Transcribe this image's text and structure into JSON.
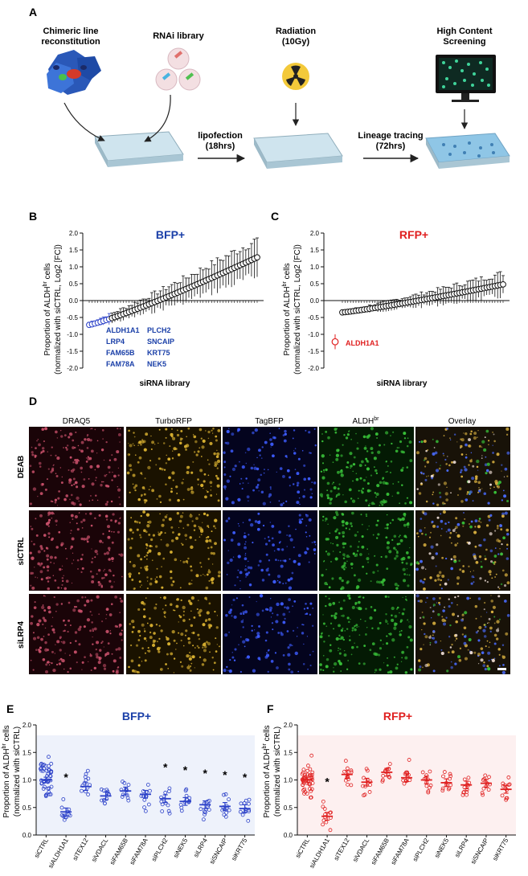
{
  "panels": {
    "A": "A",
    "B": "B",
    "C": "C",
    "D": "D",
    "E": "E",
    "F": "F"
  },
  "workflow": {
    "step1_line1": "Chimeric line",
    "step1_line2": "reconstitution",
    "step2": "RNAi library",
    "step3_line1": "Radiation",
    "step3_line2": "(10Gy)",
    "step4_line1": "High Content",
    "step4_line2": "Screening",
    "arrow1_line1": "lipofection",
    "arrow1_line2": "(18hrs)",
    "arrow2_line1": "Lineage tracing",
    "arrow2_line2": "(72hrs)"
  },
  "microscopy": {
    "columns": [
      "DRAQ5",
      "TurboRFP",
      "TagBFP",
      "ALDH",
      "Overlay"
    ],
    "aldh_superscript": "br",
    "rows": [
      "DEAB",
      "siCTRL",
      "siLRP4"
    ],
    "colors": [
      "#c8506a",
      "#d8b030",
      "#3d5cff",
      "#38c038",
      "#c8a860"
    ],
    "bg_colors": [
      "#1a0408",
      "#1a1200",
      "#04041e",
      "#041a04",
      "#181208"
    ]
  },
  "chart_data": [
    {
      "panel": "B",
      "type": "scatter",
      "title": "BFP+",
      "title_color": "#1a3fa8",
      "ylabel_line1": "Proportion of ALDH",
      "ylabel_sup": "br",
      "ylabel_line1_end": " cells",
      "ylabel_line2": "(normalized with siCTRL, Log2 [FC])",
      "xlabel": "siRNA library",
      "ylim": [
        -2.0,
        2.0
      ],
      "yticks": [
        "2.0",
        "1.5",
        "1.0",
        "0.5",
        "0.0",
        "-0.5",
        "-1.0",
        "-1.5",
        "-2.0"
      ],
      "n_points": 60,
      "start": -0.72,
      "end": 1.28,
      "highlight_n": 8,
      "highlight_color": "#2b40c8",
      "highlight_labels_col1": [
        "ALDH1A1",
        "LRP4",
        "FAM65B",
        "FAM78A"
      ],
      "highlight_labels_col2": [
        "PLCH2",
        "SNCAIP",
        "KRT75",
        "NEK5"
      ]
    },
    {
      "panel": "C",
      "type": "scatter",
      "title": "RFP+",
      "title_color": "#e02020",
      "ylabel_line1": "Proportion of ALDH",
      "ylabel_sup": "br",
      "ylabel_line1_end": " cells",
      "ylabel_line2": "(normalized with siCTRL, Log2 [FC])",
      "xlabel": "siRNA library",
      "ylim": [
        -2.0,
        2.0
      ],
      "yticks": [
        "2.0",
        "1.5",
        "1.0",
        "0.5",
        "0.0",
        "-0.5",
        "-1.0",
        "-1.5",
        "-2.0"
      ],
      "n_points": 60,
      "start": -0.35,
      "end": 0.48,
      "outlier": {
        "label": "ALDH1A1",
        "value": -1.22,
        "color": "#e02020"
      }
    },
    {
      "panel": "E",
      "type": "scatter",
      "title": "BFP+",
      "title_color": "#1a3fa8",
      "color": "#2b40c8",
      "ylabel_line1": "Proportion of ALDH",
      "ylabel_sup": "br",
      "ylabel_line1_end": " cells",
      "ylabel_line2": "(normalized with siCTRL)",
      "ylim": [
        0.0,
        2.0
      ],
      "yticks": [
        "2.0",
        "1.5",
        "1.0",
        "0.5",
        "0.0"
      ],
      "categories": [
        "siCTRL",
        "siALDH1A1",
        "siTEX12",
        "siVDACL",
        "siFAM65B",
        "siFAM78A",
        "siPLCH2",
        "siNEK5",
        "siLRP4",
        "siSNCAIP",
        "siKRT75"
      ],
      "values": [
        1.0,
        0.42,
        0.88,
        0.71,
        0.8,
        0.74,
        0.66,
        0.61,
        0.55,
        0.52,
        0.48
      ],
      "significant": [
        "",
        "*",
        "",
        "",
        "",
        "",
        "*",
        "*",
        "*",
        "*",
        "*"
      ]
    },
    {
      "panel": "F",
      "type": "scatter",
      "title": "RFP+",
      "title_color": "#e02020",
      "color": "#e02020",
      "ylabel_line1": "Proportion of ALDH",
      "ylabel_sup": "br",
      "ylabel_line1_end": " cells",
      "ylabel_line2": "(normalized with siCTRL)",
      "ylim": [
        0.0,
        2.0
      ],
      "yticks": [
        "2.0",
        "1.5",
        "1.0",
        "0.5",
        "0.0"
      ],
      "categories": [
        "siCTRL",
        "siALDH1A1",
        "siTEX12",
        "siVDACL",
        "siFAM65B",
        "siFAM78A",
        "siPLCH2",
        "siNEK5",
        "siLRP4",
        "siSNCAIP",
        "siKRT75"
      ],
      "values": [
        1.0,
        0.34,
        1.1,
        0.96,
        1.14,
        1.04,
        1.0,
        0.95,
        0.91,
        0.94,
        0.83
      ],
      "significant": [
        "",
        "*",
        "",
        "",
        "",
        "",
        "",
        "",
        "",
        "",
        ""
      ]
    }
  ]
}
